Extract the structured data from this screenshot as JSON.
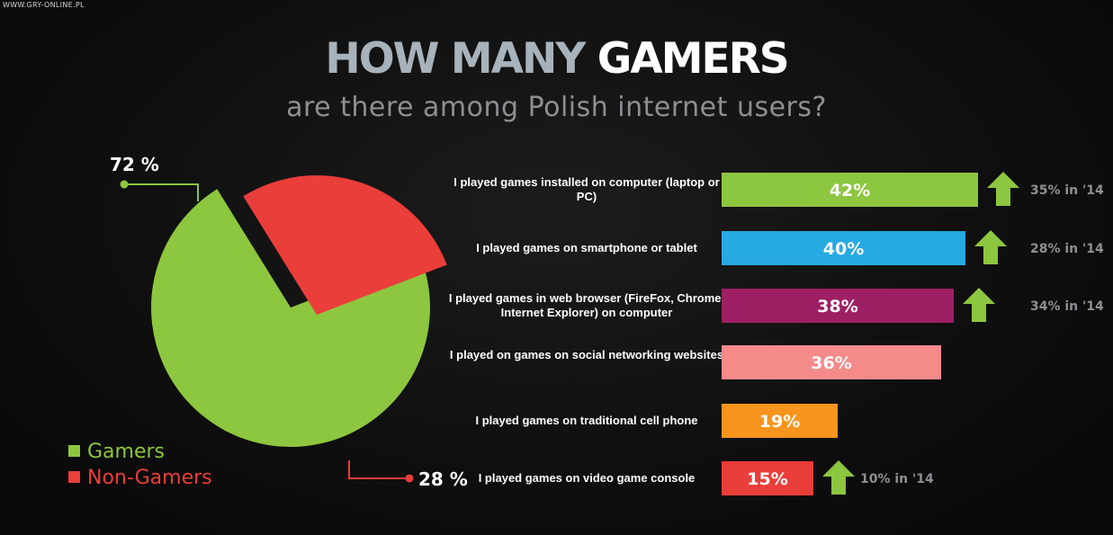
{
  "watermark": "WWW.GRY-ONLINE.PL",
  "title": {
    "part1": "HOW MANY",
    "part2": "GAMERS"
  },
  "subtitle": "are there among Polish internet users?",
  "colors": {
    "gamers": "#8dc63f",
    "non_gamers": "#ea3e3a",
    "arrow": "#8dc63f"
  },
  "chart_data": [
    {
      "type": "pie",
      "categories": [
        "Gamers",
        "Non-Gamers"
      ],
      "values": [
        72,
        28
      ],
      "value_labels": [
        "72 %",
        "28 %"
      ],
      "legend": {
        "position": "bottom-left",
        "entries": [
          "Gamers",
          "Non-Gamers"
        ]
      },
      "exploded": "Non-Gamers"
    },
    {
      "type": "bar",
      "orientation": "horizontal",
      "categories": [
        "I played games installed on computer (laptop or PC)",
        "I played games on smartphone or tablet",
        "I played games in web browser (FireFox, Chrome, Internet Explorer)  on computer",
        "I played on games on social networking websites",
        "I played games on traditional cell phone",
        "I played games on video game console"
      ],
      "values": [
        42,
        40,
        38,
        36,
        19,
        15
      ],
      "value_labels": [
        "42%",
        "40%",
        "38%",
        "36%",
        "19%",
        "15%"
      ],
      "bar_colors": [
        "#8dc63f",
        "#27a9e1",
        "#9e1f63",
        "#f48a8a",
        "#f7941d",
        "#ea3e3a"
      ],
      "comparison": [
        "35% in '14",
        "28% in '14",
        "34% in '14",
        "",
        "",
        "10% in '14"
      ],
      "trend": [
        "up",
        "up",
        "up",
        "",
        "",
        "up"
      ]
    }
  ]
}
